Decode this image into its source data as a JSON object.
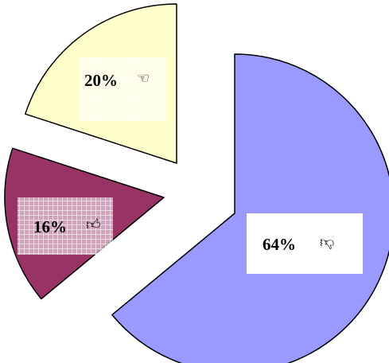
{
  "chart_data": {
    "type": "pie",
    "exploded": true,
    "slices": [
      {
        "label": "64%",
        "value": 64,
        "icon": "thumbs-down-icon",
        "glyph": "👎︎",
        "color": "#9999ff"
      },
      {
        "label": "16%",
        "value": 16,
        "icon": "thumbs-up-icon",
        "glyph": "👍︎",
        "color": "#993366"
      },
      {
        "label": "20%",
        "value": 20,
        "icon": "pointing-hand-icon",
        "glyph": "☜",
        "color": "#ffffcc"
      }
    ],
    "outline_color": "#000000",
    "label_boxes": [
      "plain-white",
      "grid-pattern",
      "grid-pattern"
    ]
  }
}
